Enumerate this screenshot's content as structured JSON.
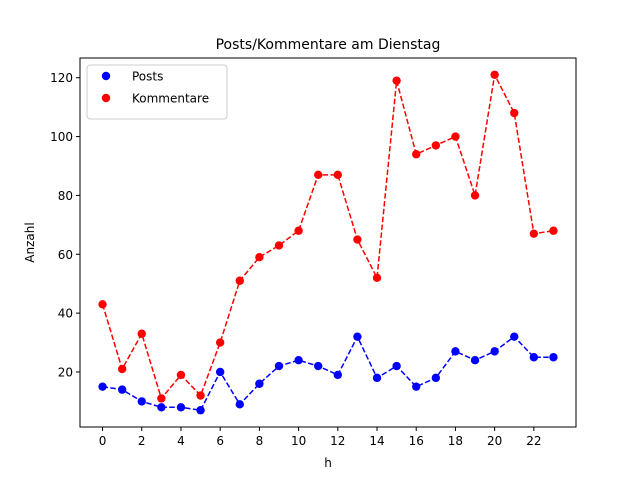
{
  "chart_data": {
    "type": "line",
    "title": "Posts/Kommentare am Dienstag",
    "xlabel": "h",
    "ylabel": "Anzahl",
    "x": [
      0,
      1,
      2,
      3,
      4,
      5,
      6,
      7,
      8,
      9,
      10,
      11,
      12,
      13,
      14,
      15,
      16,
      17,
      18,
      19,
      20,
      21,
      22,
      23
    ],
    "xlim": [
      -1.15,
      24.15
    ],
    "ylim": [
      1.3,
      126.7
    ],
    "xticks": [
      0,
      2,
      4,
      6,
      8,
      10,
      12,
      14,
      16,
      18,
      20,
      22
    ],
    "yticks": [
      20,
      40,
      60,
      80,
      100,
      120
    ],
    "grid": false,
    "legend_position": "top-left",
    "series": [
      {
        "name": "Posts",
        "color": "#0000ff",
        "line_style": "dashed",
        "marker": "circle",
        "values": [
          15,
          14,
          10,
          8,
          8,
          7,
          20,
          9,
          16,
          22,
          24,
          22,
          19,
          32,
          18,
          22,
          15,
          18,
          27,
          24,
          27,
          32,
          25,
          25
        ]
      },
      {
        "name": "Kommentare",
        "color": "#ff0000",
        "line_style": "dashed",
        "marker": "circle",
        "values": [
          43,
          21,
          33,
          11,
          19,
          12,
          30,
          51,
          59,
          63,
          68,
          87,
          87,
          65,
          52,
          119,
          94,
          97,
          100,
          80,
          121,
          108,
          67,
          68
        ]
      }
    ]
  }
}
